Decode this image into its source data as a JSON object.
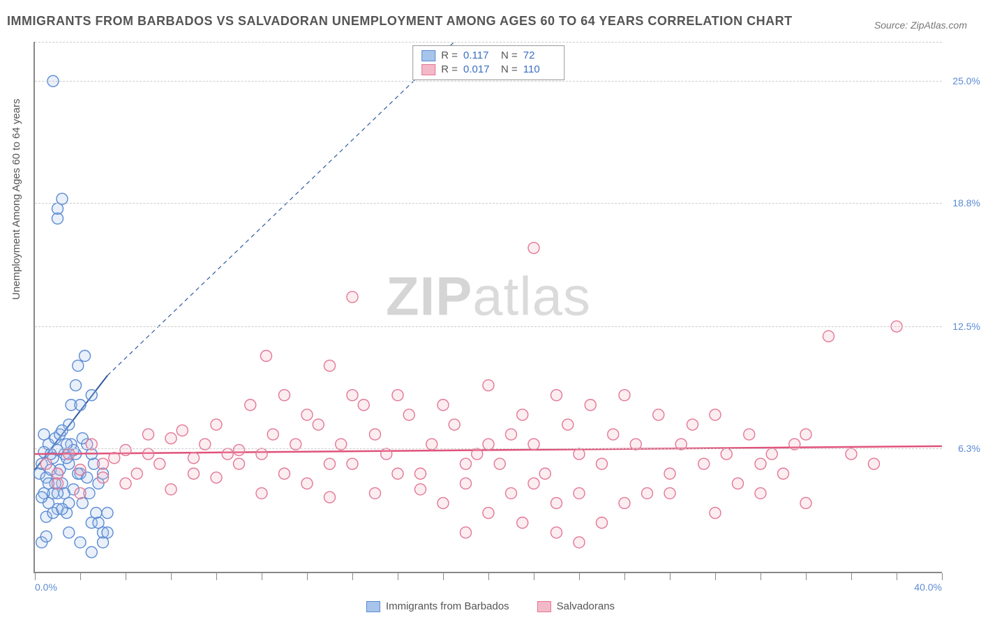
{
  "title": "IMMIGRANTS FROM BARBADOS VS SALVADORAN UNEMPLOYMENT AMONG AGES 60 TO 64 YEARS CORRELATION CHART",
  "source": "Source: ZipAtlas.com",
  "y_axis_title": "Unemployment Among Ages 60 to 64 years",
  "watermark_bold": "ZIP",
  "watermark_light": "atlas",
  "chart": {
    "type": "scatter",
    "xlim": [
      0,
      40
    ],
    "ylim": [
      0,
      27
    ],
    "x_label_min": "0.0%",
    "x_label_max": "40.0%",
    "y_grid": [
      {
        "v": 6.3,
        "label": "6.3%"
      },
      {
        "v": 12.5,
        "label": "12.5%"
      },
      {
        "v": 18.8,
        "label": "18.8%"
      },
      {
        "v": 25.0,
        "label": "25.0%"
      }
    ],
    "x_ticks": [
      0,
      2,
      4,
      6,
      8,
      10,
      12,
      14,
      16,
      18,
      20,
      22,
      24,
      26,
      28,
      30,
      32,
      34,
      36,
      38,
      40
    ],
    "background_color": "#ffffff",
    "grid_color": "#cccccc",
    "marker_radius": 8,
    "marker_stroke_width": 1.4,
    "marker_fill_opacity": 0.25,
    "series": [
      {
        "name": "Immigrants from Barbados",
        "color_fill": "#a7c4ea",
        "color_stroke": "#5b8bd4",
        "stats": {
          "R": "0.117",
          "N": "72"
        },
        "trend": {
          "x1": 0,
          "y1": 5.2,
          "x2": 3.2,
          "y2": 10.0,
          "ext_dash": true,
          "ext_x2": 18.5,
          "ext_y2": 27.0,
          "color": "#2e5aa0",
          "width": 2
        },
        "points": [
          [
            0.2,
            5.0
          ],
          [
            0.3,
            5.5
          ],
          [
            0.4,
            6.1
          ],
          [
            0.5,
            4.8
          ],
          [
            0.6,
            6.5
          ],
          [
            0.7,
            5.2
          ],
          [
            0.8,
            4.0
          ],
          [
            0.9,
            6.8
          ],
          [
            1.0,
            5.0
          ],
          [
            1.0,
            3.2
          ],
          [
            1.1,
            7.0
          ],
          [
            1.2,
            4.5
          ],
          [
            1.3,
            6.0
          ],
          [
            1.4,
            3.0
          ],
          [
            1.5,
            7.5
          ],
          [
            1.5,
            5.5
          ],
          [
            1.6,
            8.5
          ],
          [
            1.7,
            4.2
          ],
          [
            1.8,
            9.5
          ],
          [
            1.8,
            6.0
          ],
          [
            1.9,
            10.5
          ],
          [
            2.0,
            5.0
          ],
          [
            2.0,
            8.5
          ],
          [
            2.1,
            3.5
          ],
          [
            2.2,
            11.0
          ],
          [
            2.3,
            6.5
          ],
          [
            2.4,
            4.0
          ],
          [
            2.5,
            2.5
          ],
          [
            2.5,
            9.0
          ],
          [
            2.6,
            5.5
          ],
          [
            2.7,
            3.0
          ],
          [
            2.8,
            4.5
          ],
          [
            3.0,
            2.0
          ],
          [
            3.0,
            5.0
          ],
          [
            3.2,
            3.0
          ],
          [
            0.4,
            4.0
          ],
          [
            0.6,
            3.5
          ],
          [
            0.8,
            5.8
          ],
          [
            1.0,
            6.2
          ],
          [
            1.2,
            7.2
          ],
          [
            1.4,
            5.8
          ],
          [
            1.6,
            6.5
          ],
          [
            0.3,
            3.8
          ],
          [
            0.5,
            2.8
          ],
          [
            0.7,
            6.0
          ],
          [
            0.9,
            4.5
          ],
          [
            1.1,
            5.2
          ],
          [
            1.3,
            4.0
          ],
          [
            1.5,
            3.5
          ],
          [
            1.7,
            6.2
          ],
          [
            1.9,
            5.0
          ],
          [
            2.1,
            6.8
          ],
          [
            2.3,
            4.8
          ],
          [
            2.5,
            6.0
          ],
          [
            0.4,
            7.0
          ],
          [
            0.6,
            4.5
          ],
          [
            0.8,
            3.0
          ],
          [
            1.0,
            4.0
          ],
          [
            1.2,
            3.2
          ],
          [
            1.4,
            6.5
          ],
          [
            1.0,
            18.0
          ],
          [
            1.0,
            18.5
          ],
          [
            1.2,
            19.0
          ],
          [
            0.8,
            25.0
          ],
          [
            0.3,
            1.5
          ],
          [
            0.5,
            1.8
          ],
          [
            2.0,
            1.5
          ],
          [
            2.5,
            1.0
          ],
          [
            3.0,
            1.5
          ],
          [
            2.8,
            2.5
          ],
          [
            3.2,
            2.0
          ],
          [
            1.5,
            2.0
          ]
        ]
      },
      {
        "name": "Salvadorans",
        "color_fill": "#f4b9c8",
        "color_stroke": "#e37795",
        "stats": {
          "R": "0.017",
          "N": "110"
        },
        "trend": {
          "x1": 0,
          "y1": 6.0,
          "x2": 40,
          "y2": 6.4,
          "ext_dash": false,
          "color": "#e0527a",
          "width": 2.5
        },
        "points": [
          [
            0.5,
            5.5
          ],
          [
            1.0,
            5.0
          ],
          [
            1.5,
            6.0
          ],
          [
            2.0,
            5.2
          ],
          [
            2.5,
            6.5
          ],
          [
            3.0,
            4.8
          ],
          [
            3.5,
            5.8
          ],
          [
            4.0,
            6.2
          ],
          [
            4.5,
            5.0
          ],
          [
            5.0,
            7.0
          ],
          [
            5.5,
            5.5
          ],
          [
            6.0,
            6.8
          ],
          [
            6.5,
            7.2
          ],
          [
            7.0,
            5.0
          ],
          [
            7.5,
            6.5
          ],
          [
            8.0,
            7.5
          ],
          [
            8.5,
            6.0
          ],
          [
            9.0,
            5.5
          ],
          [
            9.5,
            8.5
          ],
          [
            10.0,
            6.0
          ],
          [
            10.2,
            11.0
          ],
          [
            10.5,
            7.0
          ],
          [
            11.0,
            9.0
          ],
          [
            11.5,
            6.5
          ],
          [
            12.0,
            8.0
          ],
          [
            12.5,
            7.5
          ],
          [
            13.0,
            10.5
          ],
          [
            13.0,
            5.5
          ],
          [
            13.5,
            6.5
          ],
          [
            14.0,
            9.0
          ],
          [
            14.0,
            14.0
          ],
          [
            14.5,
            8.5
          ],
          [
            15.0,
            7.0
          ],
          [
            15.5,
            6.0
          ],
          [
            16.0,
            9.0
          ],
          [
            16.5,
            8.0
          ],
          [
            17.0,
            5.0
          ],
          [
            17.5,
            6.5
          ],
          [
            18.0,
            8.5
          ],
          [
            18.5,
            7.5
          ],
          [
            19.0,
            4.5
          ],
          [
            19.5,
            6.0
          ],
          [
            20.0,
            9.5
          ],
          [
            20.0,
            3.0
          ],
          [
            20.5,
            5.5
          ],
          [
            21.0,
            7.0
          ],
          [
            21.5,
            8.0
          ],
          [
            22.0,
            6.5
          ],
          [
            22.0,
            16.5
          ],
          [
            22.5,
            5.0
          ],
          [
            23.0,
            9.0
          ],
          [
            23.0,
            3.5
          ],
          [
            23.5,
            7.5
          ],
          [
            24.0,
            6.0
          ],
          [
            24.0,
            1.5
          ],
          [
            24.5,
            8.5
          ],
          [
            25.0,
            5.5
          ],
          [
            25.5,
            7.0
          ],
          [
            26.0,
            9.0
          ],
          [
            26.5,
            6.5
          ],
          [
            27.0,
            4.0
          ],
          [
            27.5,
            8.0
          ],
          [
            28.0,
            5.0
          ],
          [
            28.5,
            6.5
          ],
          [
            29.0,
            7.5
          ],
          [
            29.5,
            5.5
          ],
          [
            30.0,
            8.0
          ],
          [
            30.5,
            6.0
          ],
          [
            31.0,
            4.5
          ],
          [
            31.5,
            7.0
          ],
          [
            32.0,
            5.5
          ],
          [
            32.5,
            6.0
          ],
          [
            33.0,
            5.0
          ],
          [
            33.5,
            6.5
          ],
          [
            34.0,
            7.0
          ],
          [
            35.0,
            12.0
          ],
          [
            36.0,
            6.0
          ],
          [
            37.0,
            5.5
          ],
          [
            38.0,
            12.5
          ],
          [
            1.0,
            4.5
          ],
          [
            2.0,
            4.0
          ],
          [
            3.0,
            5.5
          ],
          [
            4.0,
            4.5
          ],
          [
            5.0,
            6.0
          ],
          [
            6.0,
            4.2
          ],
          [
            7.0,
            5.8
          ],
          [
            8.0,
            4.8
          ],
          [
            9.0,
            6.2
          ],
          [
            10.0,
            4.0
          ],
          [
            11.0,
            5.0
          ],
          [
            12.0,
            4.5
          ],
          [
            13.0,
            3.8
          ],
          [
            14.0,
            5.5
          ],
          [
            15.0,
            4.0
          ],
          [
            16.0,
            5.0
          ],
          [
            17.0,
            4.2
          ],
          [
            18.0,
            3.5
          ],
          [
            19.0,
            5.5
          ],
          [
            20.0,
            6.5
          ],
          [
            21.0,
            4.0
          ],
          [
            22.0,
            4.5
          ],
          [
            24.0,
            4.0
          ],
          [
            26.0,
            3.5
          ],
          [
            28.0,
            4.0
          ],
          [
            30.0,
            3.0
          ],
          [
            32.0,
            4.0
          ],
          [
            34.0,
            3.5
          ],
          [
            19.0,
            2.0
          ],
          [
            21.5,
            2.5
          ],
          [
            23.0,
            2.0
          ],
          [
            25.0,
            2.5
          ]
        ]
      }
    ]
  }
}
